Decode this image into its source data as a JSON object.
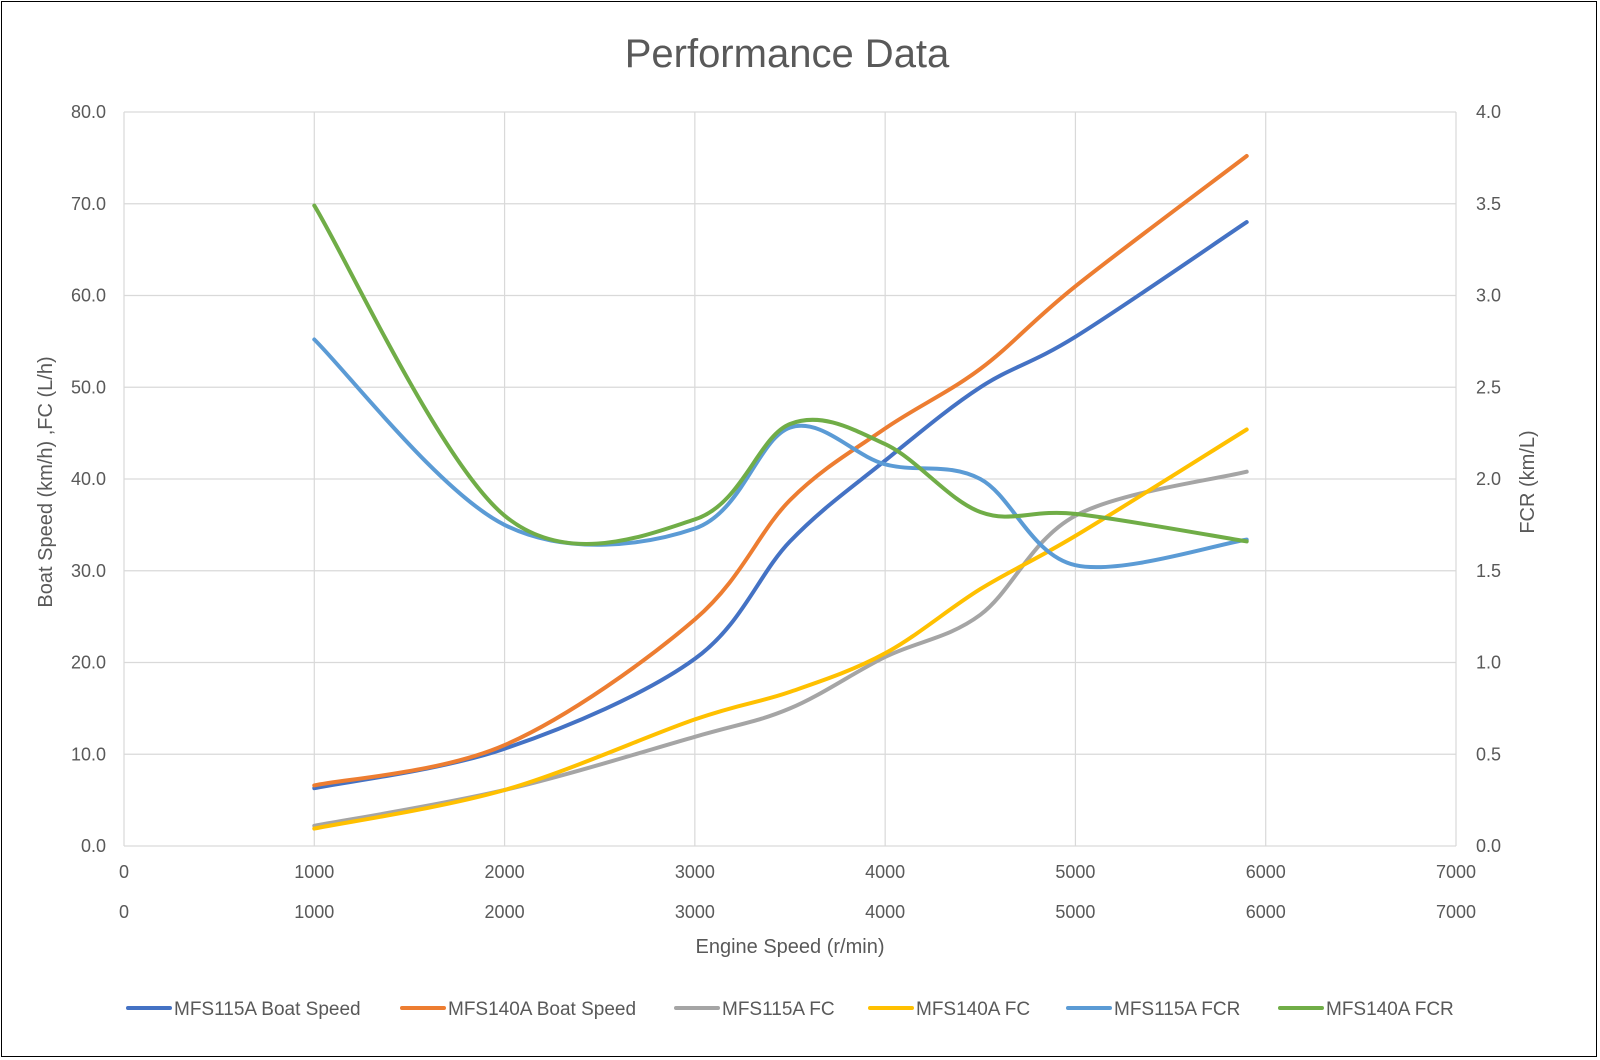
{
  "chart_data": {
    "type": "line",
    "title": "Performance Data",
    "xlabel": "Engine Speed (r/min)",
    "ylabel": "Boat Speed (km/h) ,FC (L/h)",
    "y2label": "FCR (km/L)",
    "xlim": [
      0,
      7000
    ],
    "ylim": [
      0,
      80
    ],
    "y2lim": [
      0,
      4
    ],
    "x_ticks": [
      "0",
      "1000",
      "2000",
      "3000",
      "4000",
      "5000",
      "6000",
      "7000"
    ],
    "x2_ticks": [
      "0",
      "1000",
      "2000",
      "3000",
      "4000",
      "5000",
      "6000",
      "7000"
    ],
    "y_ticks": [
      "0.0",
      "10.0",
      "20.0",
      "30.0",
      "40.0",
      "50.0",
      "60.0",
      "70.0",
      "80.0"
    ],
    "y2_ticks": [
      "0.0",
      "0.5",
      "1.0",
      "1.5",
      "2.0",
      "2.5",
      "3.0",
      "3.5",
      "4.0"
    ],
    "grid": true,
    "legend_position": "bottom",
    "x": [
      1000,
      2000,
      3000,
      3500,
      4000,
      4500,
      5000,
      5900
    ],
    "series": [
      {
        "name": "MFS115A Boat Speed",
        "axis": "left",
        "color": "#4472C4",
        "values": [
          6.3,
          10.6,
          20.4,
          33.2,
          42.0,
          50.0,
          55.5,
          68.0
        ]
      },
      {
        "name": "MFS140A Boat Speed",
        "axis": "left",
        "color": "#ED7D31",
        "values": [
          6.6,
          11.0,
          24.7,
          37.7,
          45.5,
          52.0,
          61.0,
          75.2
        ]
      },
      {
        "name": "MFS115A FC",
        "axis": "left",
        "color": "#A5A5A5",
        "values": [
          2.2,
          6.1,
          11.9,
          15.0,
          20.6,
          25.2,
          36.0,
          40.8
        ]
      },
      {
        "name": "MFS140A FC",
        "axis": "left",
        "color": "#FFC000",
        "values": [
          1.9,
          6.1,
          13.8,
          16.8,
          21.0,
          28.0,
          33.8,
          45.4
        ]
      },
      {
        "name": "MFS115A FCR",
        "axis": "right",
        "color": "#5B9BD5",
        "values": [
          2.76,
          1.75,
          1.73,
          2.28,
          2.08,
          2.0,
          1.53,
          1.67
        ]
      },
      {
        "name": "MFS140A FCR",
        "axis": "right",
        "color": "#70AD47",
        "values": [
          3.49,
          1.8,
          1.78,
          2.3,
          2.19,
          1.82,
          1.81,
          1.66
        ]
      }
    ]
  }
}
